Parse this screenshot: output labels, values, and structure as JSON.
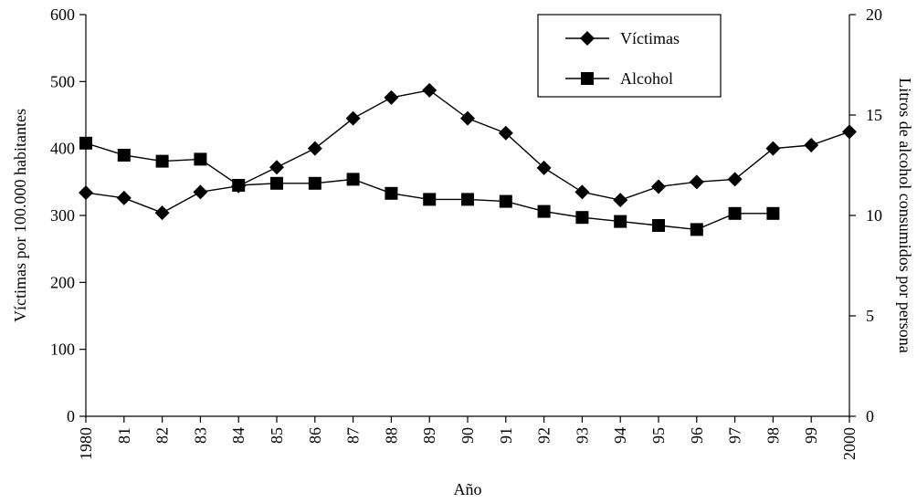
{
  "chart_data": {
    "type": "line",
    "title": "",
    "xlabel": "Año",
    "ylabel_left": "Víctimas por 100.000 habitantes",
    "ylabel_right": "Litros de alcohol consumidos por persona",
    "x": [
      "1980",
      "81",
      "82",
      "83",
      "84",
      "85",
      "86",
      "87",
      "88",
      "89",
      "90",
      "91",
      "92",
      "93",
      "94",
      "95",
      "96",
      "97",
      "98",
      "99",
      "2000"
    ],
    "ylim_left": [
      0,
      600
    ],
    "yticks_left": [
      "0",
      "100",
      "200",
      "300",
      "400",
      "500",
      "600"
    ],
    "ylim_right": [
      0,
      20
    ],
    "yticks_right": [
      "0",
      "5",
      "10",
      "15",
      "20"
    ],
    "grid": false,
    "legend_position": "top-right",
    "series": [
      {
        "name": "Víctimas",
        "axis": "left",
        "marker": "diamond",
        "values": [
          334,
          326,
          304,
          335,
          344,
          372,
          400,
          445,
          476,
          487,
          445,
          423,
          371,
          335,
          323,
          343,
          350,
          354,
          400,
          405,
          425
        ]
      },
      {
        "name": "Alcohol",
        "axis": "right",
        "marker": "square",
        "values": [
          13.6,
          13.0,
          12.7,
          12.8,
          11.5,
          11.6,
          11.6,
          11.8,
          11.1,
          10.8,
          10.8,
          10.7,
          10.2,
          9.9,
          9.7,
          9.5,
          9.3,
          10.1,
          10.1,
          null,
          null
        ]
      }
    ]
  }
}
